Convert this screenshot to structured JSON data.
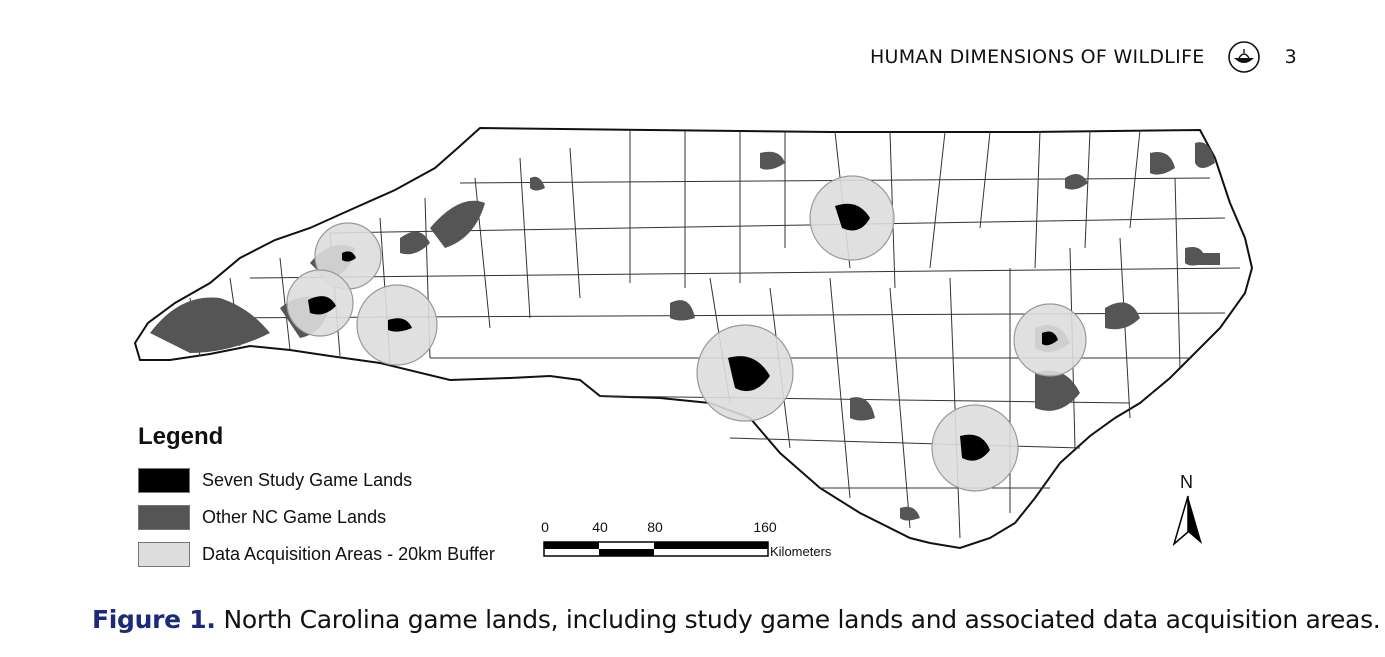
{
  "header": {
    "journal_title": "HUMAN DIMENSIONS OF WILDLIFE",
    "page_number": "3",
    "logo_icon": "publisher-lamp-icon"
  },
  "map": {
    "region": "North Carolina",
    "colors": {
      "study_game_lands": "#000000",
      "other_game_lands": "#555555",
      "buffer_areas": "#dddddd",
      "county_lines": "#222222"
    },
    "buffer_area_count": 7
  },
  "legend": {
    "title": "Legend",
    "items": [
      {
        "label": "Seven Study Game Lands",
        "color": "#000000"
      },
      {
        "label": "Other NC Game Lands",
        "color": "#555555"
      },
      {
        "label": "Data Acquisition Areas - 20km Buffer",
        "color": "#dddddd"
      }
    ]
  },
  "scale_bar": {
    "ticks": [
      "0",
      "40",
      "80",
      "160"
    ],
    "tick_values": [
      0,
      40,
      80,
      160
    ],
    "units": "Kilometers"
  },
  "north_arrow": {
    "label": "N"
  },
  "caption": {
    "label": "Figure 1.",
    "text": "North Carolina game lands, including study game lands and associated data acquisition areas."
  }
}
